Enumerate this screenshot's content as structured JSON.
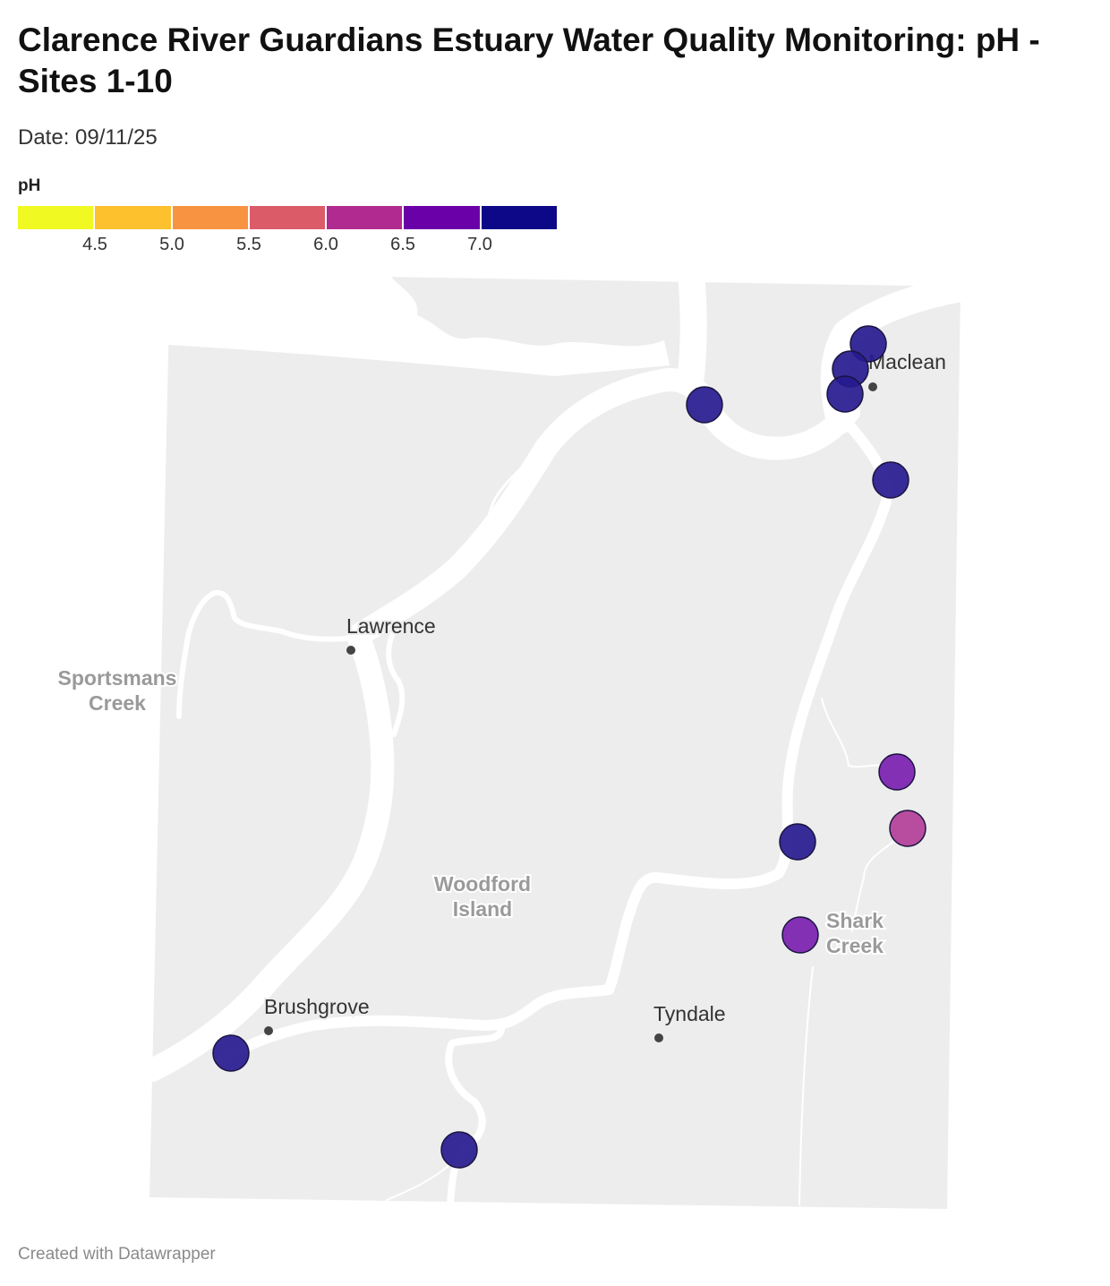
{
  "title": "Clarence River Guardians Estuary Water Quality Monitoring: pH - Sites 1-10",
  "subtitle": "Date: 09/11/25",
  "legend": {
    "title": "pH",
    "colors": [
      "#f0f921",
      "#fdc12d",
      "#f89441",
      "#db5c68",
      "#b12a90",
      "#6a00a8",
      "#0d0887"
    ],
    "ticks": [
      "4.5",
      "5.0",
      "5.5",
      "6.0",
      "6.5",
      "7.0"
    ]
  },
  "map": {
    "land_color": "#ededed",
    "water_color": "#ffffff",
    "places": [
      {
        "name": "Maclean",
        "style": "town"
      },
      {
        "name": "Lawrence",
        "style": "town"
      },
      {
        "name": "Brushgrove",
        "style": "town"
      },
      {
        "name": "Tyndale",
        "style": "town"
      },
      {
        "name": "Sportsmans Creek",
        "style": "water"
      },
      {
        "name": "Woodford Island",
        "style": "water"
      },
      {
        "name": "Shark Creek",
        "style": "water"
      }
    ],
    "site_colors": {
      "neutral": "#271a8f",
      "slightly_acidic": "#7a1fb0",
      "acidic": "#b33e98"
    }
  },
  "footer": "Created with Datawrapper"
}
